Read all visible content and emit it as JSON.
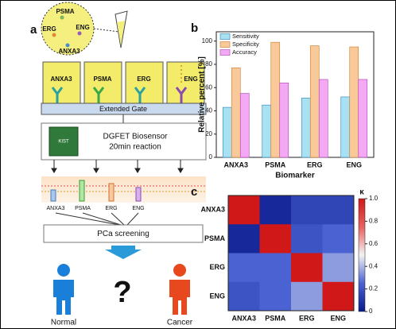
{
  "panel_a": {
    "label": "a",
    "sample_markers": [
      "PSMA",
      "ERG",
      "ENG",
      "ANXA3"
    ],
    "probes": [
      "ANXA3",
      "PSMA",
      "ERG",
      "ENG"
    ],
    "gate": "Extended Gate",
    "chip": "KIST",
    "sensor": [
      "DGFET Biosensor",
      "20min reaction"
    ],
    "signals": [
      "ANXA3",
      "PSMA",
      "ERG",
      "ENG"
    ],
    "screening": "PCa screening",
    "question": "?",
    "outcomes": [
      "Normal",
      "Cancer"
    ]
  },
  "chart_data": [
    {
      "type": "bar",
      "panel_label": "b",
      "x_label": "Biomarker",
      "y_label": "Relative percent [%]",
      "categories": [
        "ANXA3",
        "PSMA",
        "ERG",
        "ENG"
      ],
      "series": [
        {
          "name": "Sensitivity",
          "color": "#a8e2f2",
          "edge": "#2a7fb8",
          "values": [
            43,
            45,
            51,
            52
          ]
        },
        {
          "name": "Specificity",
          "color": "#f9c99a",
          "edge": "#c87a2a",
          "values": [
            77,
            99,
            96,
            95
          ]
        },
        {
          "name": "Accuracy",
          "color": "#f3a9f3",
          "edge": "#b040b0",
          "values": [
            55,
            64,
            67,
            67
          ]
        }
      ],
      "ylim": [
        0,
        108
      ],
      "yticks": [
        0,
        20,
        40,
        60,
        80,
        100
      ],
      "legend": "upper left"
    },
    {
      "type": "heatmap",
      "panel_label": "c",
      "colorbar_label": "κ",
      "categories": [
        "ANXA3",
        "PSMA",
        "ERG",
        "ENG"
      ],
      "values": [
        [
          1.0,
          0.05,
          0.15,
          0.15
        ],
        [
          0.05,
          1.0,
          0.2,
          0.25
        ],
        [
          0.25,
          0.25,
          1.0,
          0.35
        ],
        [
          0.2,
          0.25,
          0.35,
          1.0
        ]
      ],
      "zlim": [
        0,
        1
      ],
      "zticks": [
        {
          "value": 1,
          "label": "1.0"
        },
        0.8,
        0.6,
        0.4,
        0.2,
        0
      ]
    }
  ]
}
